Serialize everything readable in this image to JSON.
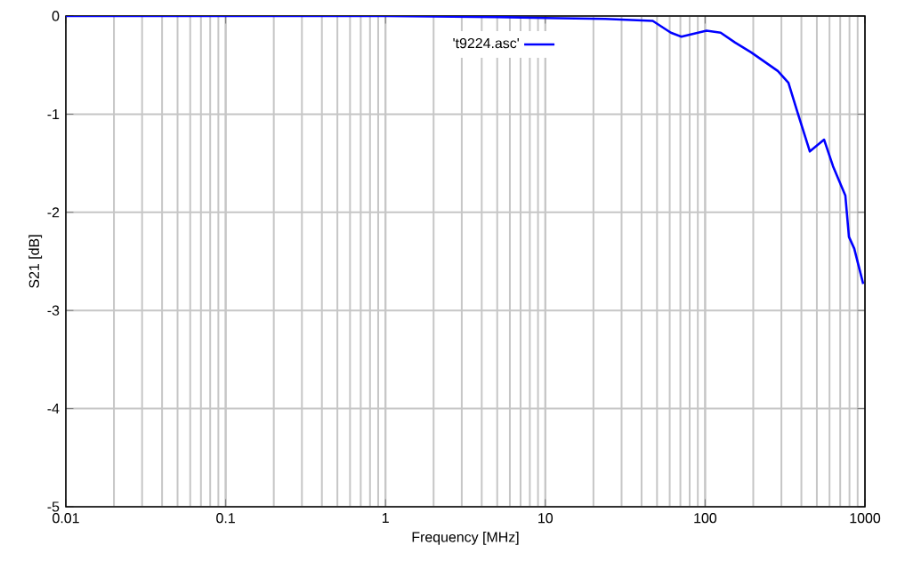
{
  "chart_data": {
    "type": "line",
    "xlabel": "Frequency [MHz]",
    "ylabel": "S21 [dB]",
    "log": "x",
    "xlim": [
      0.01,
      1000
    ],
    "ylim": [
      -5,
      0
    ],
    "xticks": [
      0.01,
      0.1,
      1,
      10,
      100,
      1000
    ],
    "yticks": [
      -5,
      -4,
      -3,
      -2,
      -1,
      0
    ],
    "grid": true,
    "legend": "top right",
    "marker": "none",
    "line_style": "solid",
    "series": [
      {
        "name": "'t9224.asc'",
        "color": "#0000ff",
        "x": [
          0.01,
          1,
          5,
          10,
          23.7,
          47,
          61,
          71,
          102,
          125,
          154,
          194,
          285,
          332,
          378,
          452,
          555,
          631,
          754,
          794,
          857,
          975
        ],
        "values": [
          0,
          0,
          -0.01,
          -0.02,
          -0.03,
          -0.05,
          -0.17,
          -0.21,
          -0.15,
          -0.17,
          -0.27,
          -0.37,
          -0.56,
          -0.68,
          -0.98,
          -1.38,
          -1.26,
          -1.53,
          -1.83,
          -2.25,
          -2.37,
          -2.73
        ]
      }
    ]
  }
}
